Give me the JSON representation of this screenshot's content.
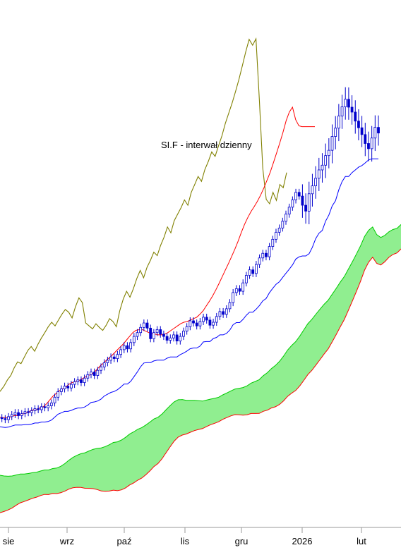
{
  "chart_data": {
    "type": "candlestick",
    "title": "SI.F - interwał dzienny",
    "x_ticks": [
      "sie",
      "wrz",
      "paź",
      "lis",
      "gru",
      "2026",
      "lut"
    ],
    "colors": {
      "candles": "#0000cc",
      "lagging_span": "#808000",
      "tenkan": "#ff0000",
      "kijun": "#0000ff",
      "cloud_fill": "#90ee90",
      "span_a": "#00cc00",
      "span_b": "#ff0000",
      "axis": "#999999"
    },
    "series": {
      "close": [
        29.1,
        29.0,
        28.9,
        29.2,
        29.4,
        29.6,
        29.3,
        29.5,
        29.7,
        29.6,
        29.8,
        30.0,
        29.9,
        30.2,
        30.1,
        30.3,
        30.6,
        31.2,
        31.8,
        32.1,
        32.4,
        32.2,
        32.6,
        32.9,
        33.1,
        32.8,
        33.3,
        33.7,
        34.0,
        33.6,
        34.2,
        34.6,
        35.1,
        35.4,
        35.8,
        35.6,
        36.1,
        36.7,
        37.2,
        36.8,
        37.6,
        38.4,
        38.9,
        39.6,
        40.2,
        39.5,
        38.1,
        38.9,
        39.3,
        38.7,
        38.4,
        37.9,
        38.2,
        38.6,
        37.8,
        38.4,
        39.1,
        39.7,
        40.5,
        40.2,
        39.8,
        40.4,
        41.0,
        40.6,
        39.9,
        40.3,
        41.1,
        41.8,
        41.4,
        42.2,
        43.1,
        44.6,
        45.2,
        44.8,
        46.1,
        47.3,
        48.2,
        47.6,
        49.1,
        50.2,
        51.0,
        50.4,
        52.2,
        53.5,
        54.8,
        55.6,
        56.9,
        58.3,
        59.7,
        61.2,
        62.8,
        62.0,
        60.1,
        58.9,
        62.5,
        64.2,
        65.9,
        67.8,
        68.9,
        71.2,
        72.5,
        76.0,
        78.2,
        81.5,
        84.1,
        86.3,
        84.0,
        82.6,
        80.1,
        78.3,
        76.5,
        74.2,
        72.9,
        75.6,
        78.4,
        76.9
      ],
      "lagging": [
        31.5,
        31.9,
        32.4,
        33.1,
        33.6,
        34.5,
        35.2,
        35.0,
        35.8,
        36.6,
        37.1,
        36.5,
        37.4,
        38.2,
        38.9,
        39.7,
        40.3,
        39.8,
        40.6,
        41.4,
        42.1,
        41.7,
        40.9,
        42.5,
        43.8,
        43.1,
        40.2,
        39.8,
        39.4,
        40.1,
        39.6,
        39.2,
        39.9,
        40.8,
        40.4,
        39.7,
        41.9,
        43.6,
        44.8,
        43.9,
        45.2,
        46.8,
        48.1,
        46.9,
        48.6,
        49.8,
        51.2,
        50.6,
        52.4,
        53.9,
        55.8,
        54.7,
        57.0,
        58.3,
        59.6,
        61.2,
        60.1,
        62.8,
        64.5,
        66.3,
        65.2,
        67.9,
        69.8,
        72.1,
        71.0,
        73.6,
        76.2,
        79.5,
        82.3,
        85.2,
        88.6,
        92.4,
        96.8,
        101.5,
        105.9,
        103.8,
        106.1,
        86.0,
        68.2,
        61.3,
        60.4,
        62.8,
        61.1,
        64.5,
        63.8,
        67.2
      ],
      "tenkan": [
        29.2,
        29.1,
        29.1,
        29.1,
        29.2,
        29.3,
        29.3,
        29.4,
        29.5,
        29.6,
        29.8,
        29.9,
        29.9,
        30.1,
        30.2,
        30.5,
        30.9,
        31.3,
        31.6,
        31.9,
        32.1,
        32.3,
        32.6,
        32.8,
        32.9,
        33.0,
        33.2,
        33.4,
        33.6,
        33.7,
        34.0,
        34.4,
        34.8,
        35.1,
        35.5,
        35.8,
        36.2,
        36.6,
        37.0,
        37.4,
        37.9,
        38.4,
        38.9,
        39.2,
        39.3,
        39.3,
        39.1,
        38.9,
        38.8,
        38.7,
        38.6,
        38.6,
        38.7,
        38.9,
        39.2,
        39.5,
        39.8,
        40.1,
        40.3,
        40.4,
        40.6,
        40.8,
        41.0,
        41.4,
        41.9,
        42.6,
        43.3,
        44.1,
        45.0,
        46.0,
        47.1,
        48.2,
        49.3,
        50.5,
        51.8,
        53.2,
        54.8,
        56.3,
        57.6,
        58.8,
        59.8,
        60.9,
        62.2,
        63.7,
        65.4,
        67.2,
        69.4,
        71.8,
        74.3,
        77.0,
        80.2,
        82.6,
        84.0,
        80.5,
        78.8,
        78.6,
        78.6,
        78.6,
        78.6,
        78.6
      ]
    }
  }
}
